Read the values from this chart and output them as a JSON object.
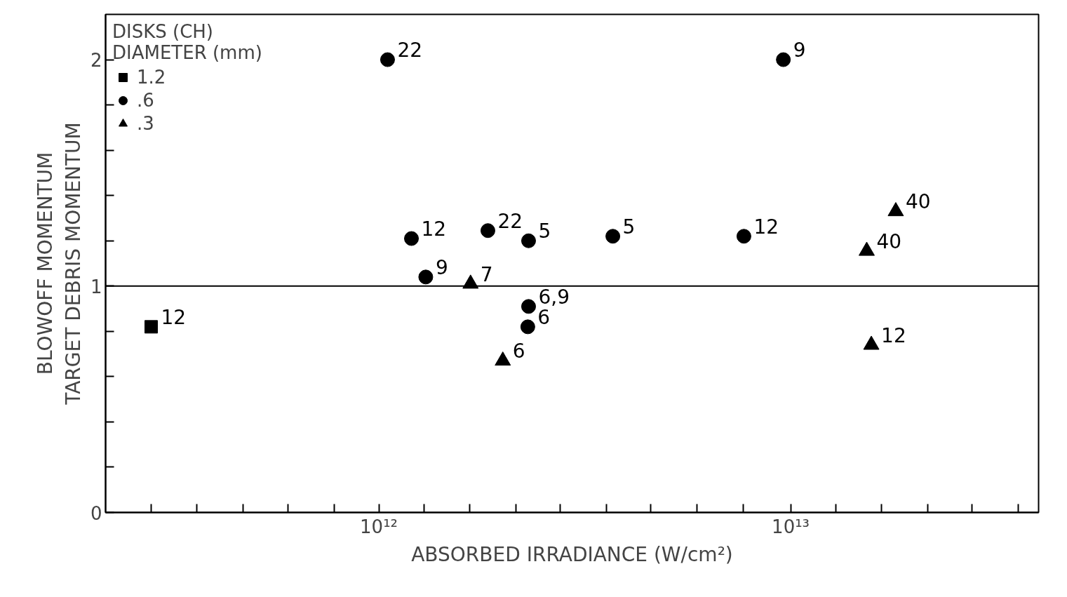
{
  "chart_data": {
    "type": "scatter",
    "xlabel": "ABSORBED IRRADIANCE (W/cm²)",
    "ylabel": "BLOWOFF MOMENTUM\nTARGET DEBRIS MOMENTUM",
    "legend_title": "DISKS (CH)\nDIAMETER (mm)",
    "legend": "top left",
    "log": "x",
    "grid": false,
    "xlim": [
      217000000000.0,
      40000000000000.0
    ],
    "xticks": [
      {
        "value": 280000000000.0,
        "label": null
      },
      {
        "value": 362000000000.0,
        "label": null
      },
      {
        "value": 469000000000.0,
        "label": null
      },
      {
        "value": 602000000000.0,
        "label": null
      },
      {
        "value": 779000000000.0,
        "label": null
      },
      {
        "value": 1000000000000.0,
        "label": "10¹²"
      },
      {
        "value": 1290000000000.0,
        "label": null
      },
      {
        "value": 1660000000000.0,
        "label": null
      },
      {
        "value": 2150000000000.0,
        "label": null
      },
      {
        "value": 2760000000000.0,
        "label": null
      },
      {
        "value": 3570000000000.0,
        "label": null
      },
      {
        "value": 4580000000000.0,
        "label": null
      },
      {
        "value": 5930000000000.0,
        "label": null
      },
      {
        "value": 7670000000000.0,
        "label": null
      },
      {
        "value": 10000000000000.0,
        "label": "10¹³"
      },
      {
        "value": 12900000000000.0,
        "label": null
      },
      {
        "value": 16600000000000.0,
        "label": null
      },
      {
        "value": 21500000000000.0,
        "label": null
      },
      {
        "value": 27600000000000.0,
        "label": null
      },
      {
        "value": 35700000000000.0,
        "label": null
      }
    ],
    "ylim": [
      0,
      2.2
    ],
    "yticks": [
      0,
      {
        "value": 0.2,
        "label": null
      },
      {
        "value": 0.4,
        "label": null
      },
      {
        "value": 0.6,
        "label": null
      },
      {
        "value": 0.8,
        "label": null
      },
      1,
      {
        "value": 1.2,
        "label": null
      },
      {
        "value": 1.4,
        "label": null
      },
      {
        "value": 1.6,
        "label": null
      },
      {
        "value": 1.8,
        "label": null
      },
      2
    ],
    "ref_lines": [
      {
        "axis": "y",
        "value": 1,
        "label": null,
        "color": "#000000"
      }
    ],
    "series": [
      {
        "name": "1.2",
        "marker": "square",
        "color": "#000000",
        "x": [
          280000000000.0
        ],
        "values": [
          0.82
        ]
      },
      {
        "name": ".6",
        "marker": "circle",
        "color": "#000000",
        "x": [
          1050000000000.0,
          9600000000000.0,
          1200000000000.0,
          1840000000000.0,
          2310000000000.0,
          3700000000000.0,
          7700000000000.0,
          1300000000000.0,
          2310000000000.0,
          2300000000000.0
        ],
        "values": [
          2.0,
          2.0,
          1.21,
          1.245,
          1.2,
          1.22,
          1.22,
          1.04,
          0.91,
          0.82
        ]
      },
      {
        "name": ".3",
        "marker": "triangle",
        "color": "#000000",
        "x": [
          1670000000000.0,
          2000000000000.0,
          18000000000000.0,
          15300000000000.0,
          15700000000000.0
        ],
        "values": [
          1.01,
          0.67,
          1.33,
          1.155,
          0.74
        ]
      }
    ],
    "annotations": [
      {
        "text": "12",
        "x": 280000000000.0,
        "y": 0.82
      },
      {
        "text": "22",
        "x": 1050000000000.0,
        "y": 2.0
      },
      {
        "text": "9",
        "x": 9600000000000.0,
        "y": 2.0
      },
      {
        "text": "12",
        "x": 1200000000000.0,
        "y": 1.21
      },
      {
        "text": "22",
        "x": 1840000000000.0,
        "y": 1.245
      },
      {
        "text": "5",
        "x": 2310000000000.0,
        "y": 1.2
      },
      {
        "text": "5",
        "x": 3700000000000.0,
        "y": 1.22
      },
      {
        "text": "12",
        "x": 7700000000000.0,
        "y": 1.22
      },
      {
        "text": "9",
        "x": 1300000000000.0,
        "y": 1.04
      },
      {
        "text": "6,9",
        "x": 2310000000000.0,
        "y": 0.91
      },
      {
        "text": "6",
        "x": 2300000000000.0,
        "y": 0.82
      },
      {
        "text": "7",
        "x": 1670000000000.0,
        "y": 1.01
      },
      {
        "text": "6",
        "x": 2000000000000.0,
        "y": 0.67
      },
      {
        "text": "40",
        "x": 18000000000000.0,
        "y": 1.33
      },
      {
        "text": "40",
        "x": 15300000000000.0,
        "y": 1.155
      },
      {
        "text": "12",
        "x": 15700000000000.0,
        "y": 0.74
      }
    ]
  }
}
